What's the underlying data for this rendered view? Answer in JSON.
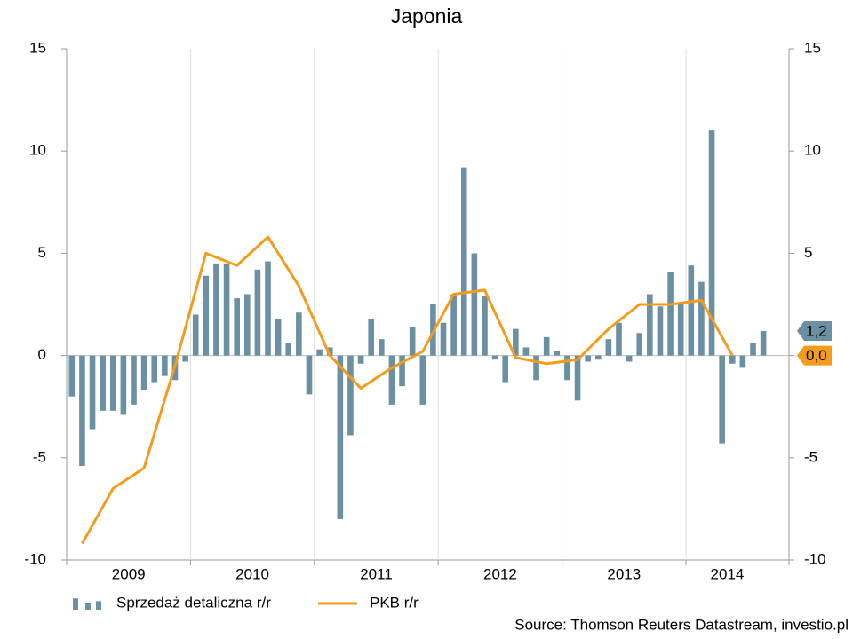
{
  "chart_data": {
    "type": "bar-line",
    "title": "Japonia",
    "source": "Source: Thomson Reuters Datastream, investio.pl",
    "x_labels": [
      "2009",
      "2010",
      "2011",
      "2012",
      "2013",
      "2014"
    ],
    "ylim": [
      -10,
      15
    ],
    "yticks": [
      -10,
      -5,
      0,
      5,
      10,
      15
    ],
    "y2lim": [
      -10,
      15
    ],
    "y2ticks": [
      -10,
      -5,
      0,
      5,
      10,
      15
    ],
    "series": [
      {
        "name": "Sprzedaż detaliczna r/r",
        "type": "bar",
        "color": "#6b8fa3",
        "values": [
          -2.0,
          -5.4,
          -3.6,
          -2.7,
          -2.7,
          -2.9,
          -2.4,
          -1.7,
          -1.3,
          -1.0,
          -1.2,
          -0.3,
          2.0,
          3.9,
          4.5,
          4.5,
          2.8,
          3.0,
          4.2,
          4.6,
          1.8,
          0.6,
          2.1,
          -1.9,
          0.3,
          0.4,
          -8.0,
          -3.9,
          -0.4,
          1.8,
          0.8,
          -2.4,
          -1.5,
          1.4,
          -2.4,
          2.5,
          1.6,
          3.0,
          9.2,
          5.0,
          2.9,
          -0.2,
          -1.3,
          1.3,
          0.4,
          -1.2,
          0.9,
          0.2,
          -1.2,
          -2.2,
          -0.3,
          -0.2,
          0.8,
          1.6,
          -0.3,
          1.1,
          3.0,
          2.4,
          4.1,
          2.5,
          4.4,
          3.6,
          11.0,
          -4.3,
          -0.4,
          -0.6,
          0.6,
          1.2
        ],
        "end_label": {
          "value": 1.2,
          "label": "1,2"
        }
      },
      {
        "name": "PKB r/r",
        "type": "line",
        "color": "#f39c1b",
        "axis": "y2",
        "values": [
          -9.2,
          -6.5,
          -5.5,
          -0.5,
          5.0,
          4.4,
          5.8,
          3.4,
          0.0,
          -1.6,
          -0.6,
          0.2,
          3.0,
          3.2,
          -0.1,
          -0.4,
          -0.2,
          1.3,
          2.5,
          2.5,
          2.7,
          0.0
        ],
        "end_label": {
          "value": 0.0,
          "label": "0,0"
        }
      }
    ]
  }
}
